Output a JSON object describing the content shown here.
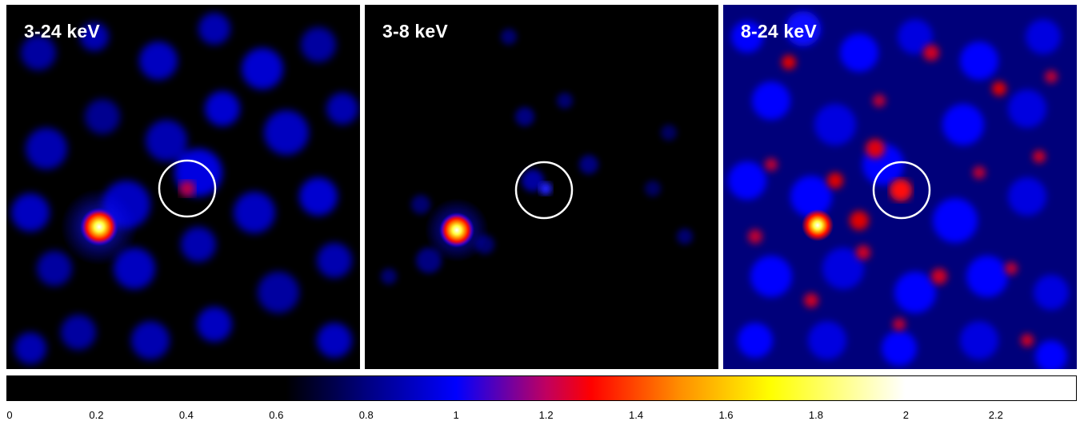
{
  "panels": [
    {
      "label": "3-24 keV",
      "style": "mid"
    },
    {
      "label": "3-8 keV",
      "style": "low"
    },
    {
      "label": "8-24 keV",
      "style": "high"
    }
  ],
  "colorbar": {
    "ticks": [
      "0",
      "0.2",
      "0.4",
      "0.6",
      "0.8",
      "1",
      "1.2",
      "1.4",
      "1.6",
      "1.8",
      "2",
      "2.2"
    ],
    "min": 0,
    "max": 2.38,
    "stops": [
      {
        "value": 0.0,
        "color": "#000000"
      },
      {
        "value": 0.62,
        "color": "#000000"
      },
      {
        "value": 0.8,
        "color": "#000080"
      },
      {
        "value": 1.0,
        "color": "#0000ff"
      },
      {
        "value": 1.2,
        "color": "#c00060"
      },
      {
        "value": 1.3,
        "color": "#ff0000"
      },
      {
        "value": 1.5,
        "color": "#ff9000"
      },
      {
        "value": 1.7,
        "color": "#ffff00"
      },
      {
        "value": 2.0,
        "color": "#ffffff"
      },
      {
        "value": 2.38,
        "color": "#ffffff"
      }
    ]
  },
  "colors": {
    "background": "#000000",
    "circle": "#ffffff",
    "label": "#ffffff"
  }
}
